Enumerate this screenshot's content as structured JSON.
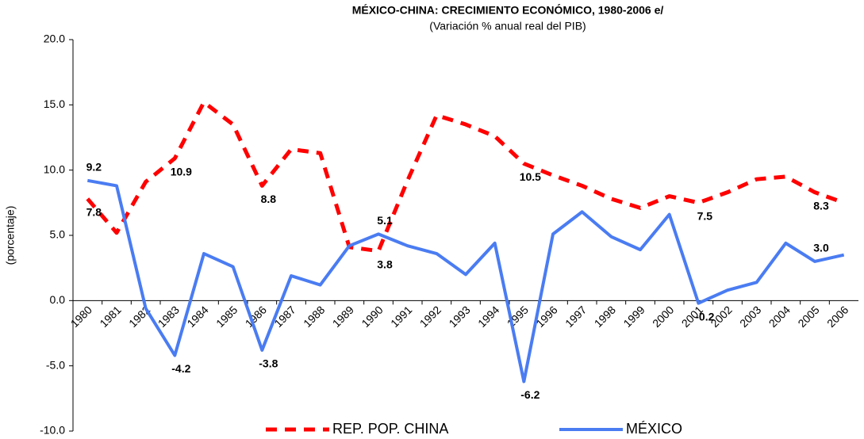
{
  "chart_data": {
    "type": "line",
    "title": "MÉXICO-CHINA: CRECIMIENTO ECONÓMICO, 1980-2006 e/",
    "subtitle": "(Variación % anual real del PIB)",
    "y_label": "(porcentaje)",
    "categories": [
      "1980",
      "1981",
      "1982",
      "1983",
      "1984",
      "1985",
      "1986",
      "1987",
      "1988",
      "1989",
      "1990",
      "1991",
      "1992",
      "1993",
      "1994",
      "1995",
      "1996",
      "1997",
      "1998",
      "1999",
      "2000",
      "2001",
      "2002",
      "2003",
      "2004",
      "2005",
      "2006"
    ],
    "series": [
      {
        "name": "REP. POP. CHINA",
        "color": "#ff0000",
        "dashed": true,
        "values": [
          7.8,
          5.2,
          9.1,
          10.9,
          15.2,
          13.5,
          8.8,
          11.6,
          11.3,
          4.1,
          3.8,
          9.2,
          14.2,
          13.5,
          12.6,
          10.5,
          9.6,
          8.8,
          7.8,
          7.1,
          8.0,
          7.5,
          8.3,
          9.3,
          9.5,
          8.3,
          7.5
        ],
        "value_labels": [
          "7.8",
          null,
          null,
          "10.9",
          null,
          null,
          "8.8",
          null,
          null,
          null,
          "3.8",
          null,
          null,
          null,
          null,
          "10.5",
          null,
          null,
          null,
          null,
          null,
          "7.5",
          null,
          null,
          null,
          "8.3",
          null
        ]
      },
      {
        "name": "MÉXICO",
        "color": "#4a7cf2",
        "dashed": false,
        "values": [
          9.2,
          8.8,
          -0.6,
          -4.2,
          3.6,
          2.6,
          -3.8,
          1.9,
          1.2,
          4.2,
          5.1,
          4.2,
          3.6,
          2.0,
          4.4,
          -6.2,
          5.1,
          6.8,
          4.9,
          3.9,
          6.6,
          -0.2,
          0.8,
          1.4,
          4.4,
          3.0,
          3.5
        ],
        "value_labels": [
          "9.2",
          null,
          null,
          "-4.2",
          null,
          null,
          "-3.8",
          null,
          null,
          null,
          "5.1",
          null,
          null,
          null,
          null,
          "-6.2",
          null,
          null,
          null,
          null,
          null,
          "-0.2",
          null,
          null,
          null,
          "3.0",
          null
        ]
      }
    ],
    "ylim": [
      -10,
      20
    ],
    "yticks": [
      {
        "value": -10,
        "label": "-10.0"
      },
      {
        "value": -5,
        "label": "-5.0"
      },
      {
        "value": 0,
        "label": "0.0"
      },
      {
        "value": 5,
        "label": "5.0"
      },
      {
        "value": 10,
        "label": "10.0"
      },
      {
        "value": 15,
        "label": "15.0"
      },
      {
        "value": 20,
        "label": "20.0"
      }
    ],
    "legend": "bottom"
  }
}
